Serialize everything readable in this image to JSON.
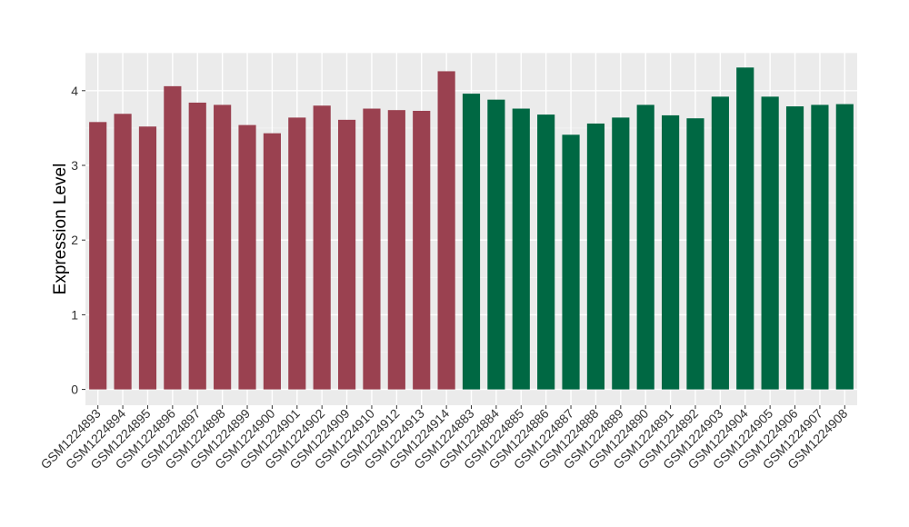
{
  "chart_data": {
    "type": "bar",
    "title": "",
    "xlabel": "",
    "ylabel": "Expression Level",
    "ylim": [
      0,
      4.5
    ],
    "yticks": [
      0,
      1,
      2,
      3,
      4
    ],
    "grid": true,
    "legend": "none",
    "colors": {
      "group1": "#9a4150",
      "group2": "#006843",
      "panel_background": "#ebebeb",
      "grid_major": "#ffffff",
      "grid_minor": "#f5f5f5"
    },
    "categories": [
      "GSM1224893",
      "GSM1224894",
      "GSM1224895",
      "GSM1224896",
      "GSM1224897",
      "GSM1224898",
      "GSM1224899",
      "GSM1224900",
      "GSM1224901",
      "GSM1224902",
      "GSM1224909",
      "GSM1224910",
      "GSM1224912",
      "GSM1224913",
      "GSM1224914",
      "GSM1224883",
      "GSM1224884",
      "GSM1224885",
      "GSM1224886",
      "GSM1224887",
      "GSM1224888",
      "GSM1224889",
      "GSM1224890",
      "GSM1224891",
      "GSM1224892",
      "GSM1224903",
      "GSM1224904",
      "GSM1224905",
      "GSM1224906",
      "GSM1224907",
      "GSM1224908"
    ],
    "values": [
      3.58,
      3.69,
      3.52,
      4.06,
      3.84,
      3.81,
      3.54,
      3.43,
      3.64,
      3.8,
      3.61,
      3.76,
      3.74,
      3.73,
      4.26,
      3.96,
      3.88,
      3.76,
      3.68,
      3.41,
      3.56,
      3.64,
      3.81,
      3.67,
      3.63,
      3.92,
      4.31,
      3.92,
      3.79,
      3.81,
      3.82
    ],
    "groups": [
      "group1",
      "group1",
      "group1",
      "group1",
      "group1",
      "group1",
      "group1",
      "group1",
      "group1",
      "group1",
      "group1",
      "group1",
      "group1",
      "group1",
      "group1",
      "group2",
      "group2",
      "group2",
      "group2",
      "group2",
      "group2",
      "group2",
      "group2",
      "group2",
      "group2",
      "group2",
      "group2",
      "group2",
      "group2",
      "group2",
      "group2"
    ]
  }
}
